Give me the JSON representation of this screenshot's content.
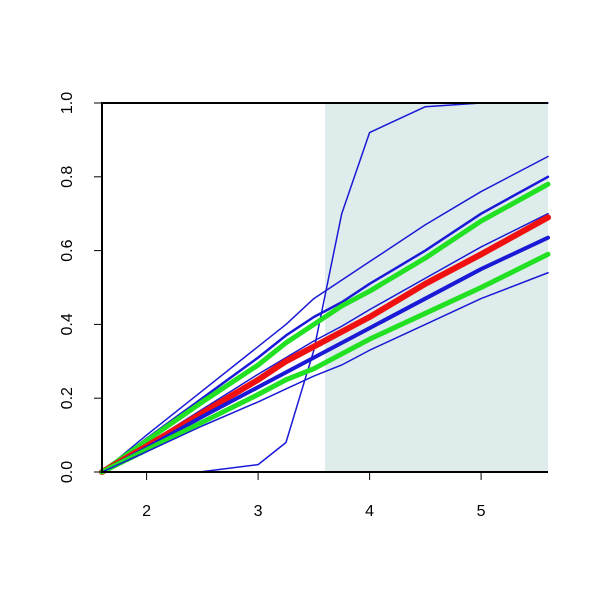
{
  "chart_data": {
    "type": "line",
    "x": [
      1.6,
      2,
      2.5,
      3,
      3.25,
      3.5,
      3.75,
      4,
      4.5,
      5,
      5.6
    ],
    "series": [
      {
        "color": "#1a1ad6",
        "width": 1.5,
        "values": [
          0,
          0,
          0.001,
          0.02,
          0.08,
          0.33,
          0.7,
          0.92,
          0.99,
          1,
          1
        ]
      },
      {
        "color": "#1a1ad6",
        "width": 1.5,
        "values": [
          0,
          0.1,
          0.22,
          0.34,
          0.4,
          0.47,
          0.52,
          0.57,
          0.67,
          0.76,
          0.855
        ]
      },
      {
        "color": "#1a1ad6",
        "width": 2.5,
        "values": [
          0,
          0.09,
          0.2,
          0.31,
          0.37,
          0.42,
          0.46,
          0.51,
          0.6,
          0.7,
          0.8
        ]
      },
      {
        "color": "#22e022",
        "width": 5,
        "values": [
          0,
          0.085,
          0.19,
          0.29,
          0.35,
          0.4,
          0.45,
          0.49,
          0.58,
          0.68,
          0.78
        ]
      },
      {
        "color": "#1a1ad6",
        "width": 1.5,
        "values": [
          0,
          0.075,
          0.17,
          0.265,
          0.31,
          0.355,
          0.395,
          0.44,
          0.525,
          0.61,
          0.7
        ]
      },
      {
        "color": "#f01010",
        "width": 6,
        "values": [
          0,
          0.07,
          0.16,
          0.25,
          0.3,
          0.34,
          0.38,
          0.42,
          0.51,
          0.59,
          0.69
        ]
      },
      {
        "color": "#1a1ad6",
        "width": 4,
        "values": [
          0,
          0.065,
          0.15,
          0.23,
          0.27,
          0.31,
          0.35,
          0.39,
          0.47,
          0.55,
          0.635
        ]
      },
      {
        "color": "#22e022",
        "width": 5,
        "values": [
          0,
          0.06,
          0.135,
          0.21,
          0.25,
          0.28,
          0.32,
          0.36,
          0.43,
          0.5,
          0.59
        ]
      },
      {
        "color": "#1a1ad6",
        "width": 1.5,
        "values": [
          0,
          0.055,
          0.125,
          0.19,
          0.225,
          0.26,
          0.29,
          0.33,
          0.4,
          0.47,
          0.54
        ]
      }
    ],
    "shade_x": [
      3.6,
      5.6
    ],
    "shade_color": "#deecec",
    "xlim": [
      1.6,
      5.6
    ],
    "ylim": [
      0,
      1
    ],
    "xticks": [
      2,
      3,
      4,
      5
    ],
    "yticks": [
      {
        "value": 0,
        "label": "0.0"
      },
      {
        "value": 0.2,
        "label": "0.2"
      },
      {
        "value": 0.4,
        "label": "0.4"
      },
      {
        "value": 0.6,
        "label": "0.6"
      },
      {
        "value": 0.8,
        "label": "0.8"
      },
      {
        "value": 1,
        "label": "1.0"
      }
    ]
  }
}
